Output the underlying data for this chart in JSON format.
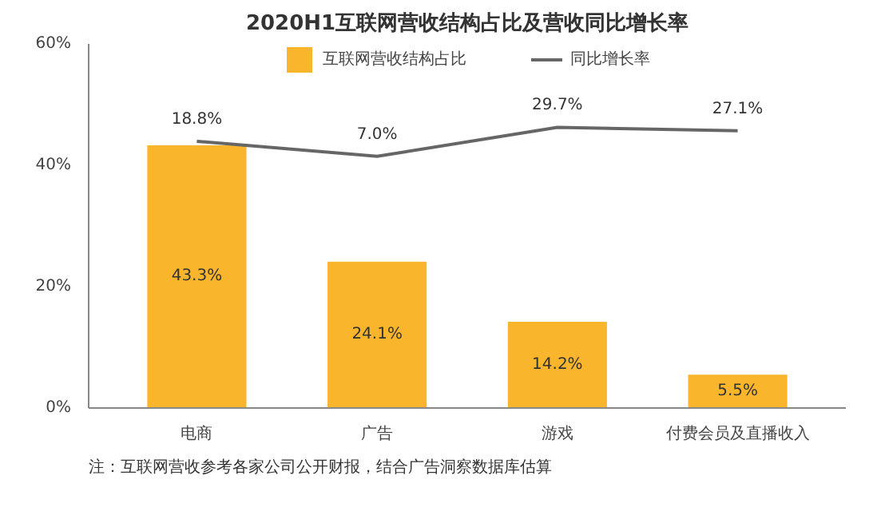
{
  "chart_data": {
    "type": "bar",
    "title": "2020H1互联网营收结构占比及营收同比增长率",
    "categories": [
      "电商",
      "广告",
      "游戏",
      "付费会员及直播收入"
    ],
    "series": [
      {
        "name": "互联网营收结构占比",
        "color": "#f9b62c",
        "values": [
          43.3,
          24.1,
          14.2,
          5.5
        ],
        "value_labels": [
          "43.3%",
          "24.1%",
          "14.2%",
          "5.5%"
        ]
      },
      {
        "name": "同比增长率",
        "type": "line",
        "axis": "y2",
        "color": "#666666",
        "values": [
          18.8,
          7.0,
          29.7,
          27.1
        ],
        "value_labels": [
          "18.8%",
          "7.0%",
          "29.7%",
          "27.1%"
        ]
      }
    ],
    "ylim": [
      0,
      60
    ],
    "yticks": [
      {
        "value": 0,
        "label": "0%"
      },
      {
        "value": 20,
        "label": "20%"
      },
      {
        "value": 40,
        "label": "40%"
      },
      {
        "value": 60,
        "label": "60%"
      }
    ],
    "y2lim": [
      -190,
      95
    ],
    "legend": "top",
    "annotations": [
      "注：互联网营收参考各家公司公开财报，结合广告洞察数据库估算"
    ]
  }
}
